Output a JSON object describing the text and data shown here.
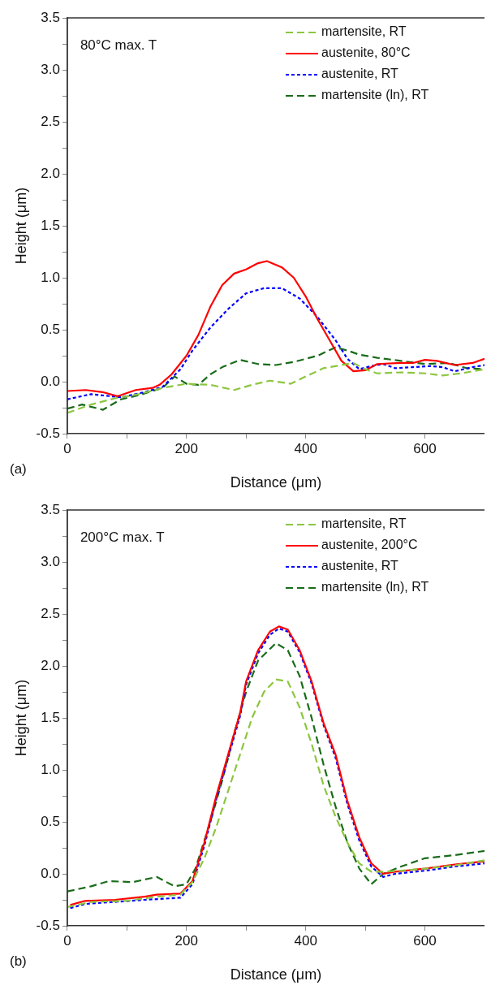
{
  "chart_data": [
    {
      "type": "line",
      "xlabel": "Distance (μm)",
      "ylabel": "Height (μm)",
      "annotations": [
        "80°C max. T",
        "(a)"
      ],
      "legend": "top right",
      "grid": false,
      "marker": "none",
      "xlim": [
        0,
        700
      ],
      "xticks": [
        0,
        {
          "value": 100,
          "label": null
        },
        200,
        {
          "value": 300,
          "label": null
        },
        400,
        {
          "value": 500,
          "label": null
        },
        600
      ],
      "ylim": [
        -0.5,
        3.5
      ],
      "yticks": [
        -0.5,
        {
          "value": -0.25,
          "label": null
        },
        {
          "value": 0,
          "label": "0.0"
        },
        {
          "value": 0.25,
          "label": null
        },
        0.5,
        {
          "value": 0.75,
          "label": null
        },
        {
          "value": 1,
          "label": "1.0"
        },
        {
          "value": 1.25,
          "label": null
        },
        1.5,
        {
          "value": 1.75,
          "label": null
        },
        {
          "value": 2,
          "label": "2.0"
        },
        {
          "value": 2.25,
          "label": null
        },
        2.5,
        {
          "value": 2.75,
          "label": null
        },
        {
          "value": 3,
          "label": "3.0"
        },
        {
          "value": 3.25,
          "label": null
        },
        3.5
      ],
      "series": [
        {
          "name": "martensite, RT",
          "color": "#8cc63f",
          "line_style": "dashed",
          "x": [
            0,
            40,
            80,
            120,
            160,
            200,
            240,
            280,
            310,
            340,
            375,
            400,
            430,
            460,
            480,
            500,
            520,
            560,
            600,
            630,
            660,
            700
          ],
          "values": [
            -0.3,
            -0.22,
            -0.16,
            -0.12,
            -0.06,
            -0.02,
            -0.03,
            -0.08,
            -0.03,
            0.01,
            -0.02,
            0.05,
            0.13,
            0.16,
            0.18,
            0.12,
            0.08,
            0.09,
            0.08,
            0.06,
            0.08,
            0.12
          ]
        },
        {
          "name": "austenite, 80°C",
          "color": "#ff0000",
          "line_style": "solid",
          "x": [
            0,
            31,
            59,
            84,
            115,
            143,
            155,
            175,
            200,
            220,
            240,
            260,
            280,
            300,
            320,
            335,
            360,
            380,
            400,
            420,
            440,
            460,
            480,
            500,
            520,
            560,
            580,
            600,
            620,
            650,
            680,
            700
          ],
          "values": [
            -0.09,
            -0.08,
            -0.1,
            -0.14,
            -0.08,
            -0.06,
            -0.03,
            0.07,
            0.25,
            0.45,
            0.72,
            0.93,
            1.04,
            1.08,
            1.14,
            1.16,
            1.1,
            1.0,
            0.82,
            0.6,
            0.4,
            0.2,
            0.1,
            0.11,
            0.17,
            0.18,
            0.18,
            0.21,
            0.2,
            0.16,
            0.18,
            0.22
          ]
        },
        {
          "name": "austenite, RT",
          "color": "#0000ff",
          "line_style": "dotted",
          "x": [
            0,
            40,
            90,
            130,
            160,
            190,
            210,
            240,
            270,
            300,
            330,
            360,
            390,
            420,
            450,
            470,
            490,
            510,
            530,
            550,
            580,
            610,
            630,
            650,
            680,
            700
          ],
          "values": [
            -0.17,
            -0.12,
            -0.15,
            -0.1,
            -0.05,
            0.12,
            0.3,
            0.52,
            0.7,
            0.85,
            0.9,
            0.9,
            0.8,
            0.62,
            0.4,
            0.22,
            0.12,
            0.15,
            0.17,
            0.13,
            0.14,
            0.15,
            0.14,
            0.1,
            0.14,
            0.16
          ]
        },
        {
          "name": "martensite (ln), RT",
          "color": "#1a6b1a",
          "line_style": "dashed",
          "x": [
            0,
            25,
            60,
            90,
            120,
            160,
            180,
            200,
            220,
            240,
            260,
            290,
            320,
            350,
            380,
            420,
            450,
            470,
            490,
            520,
            560,
            600,
            640,
            670,
            700
          ],
          "values": [
            -0.26,
            -0.22,
            -0.27,
            -0.17,
            -0.13,
            -0.06,
            0.05,
            -0.02,
            -0.03,
            0.07,
            0.14,
            0.21,
            0.17,
            0.16,
            0.19,
            0.25,
            0.33,
            0.3,
            0.26,
            0.23,
            0.2,
            0.17,
            0.18,
            0.13,
            0.12
          ]
        }
      ]
    },
    {
      "type": "line",
      "xlabel": "Distance (μm)",
      "ylabel": "Height (μm)",
      "annotations": [
        "200°C max. T",
        "(b)"
      ],
      "legend": "top right",
      "grid": false,
      "marker": "none",
      "xlim": [
        0,
        700
      ],
      "xticks": [
        0,
        {
          "value": 100,
          "label": null
        },
        200,
        {
          "value": 300,
          "label": null
        },
        400,
        {
          "value": 500,
          "label": null
        },
        600
      ],
      "ylim": [
        -0.5,
        3.5
      ],
      "yticks": [
        -0.5,
        {
          "value": -0.25,
          "label": null
        },
        {
          "value": 0,
          "label": "0.0"
        },
        {
          "value": 0.25,
          "label": null
        },
        0.5,
        {
          "value": 0.75,
          "label": null
        },
        {
          "value": 1,
          "label": "1.0"
        },
        {
          "value": 1.25,
          "label": null
        },
        1.5,
        {
          "value": 1.75,
          "label": null
        },
        {
          "value": 2,
          "label": "2.0"
        },
        {
          "value": 2.25,
          "label": null
        },
        2.5,
        {
          "value": 2.75,
          "label": null
        },
        {
          "value": 3,
          "label": "3.0"
        },
        {
          "value": 3.25,
          "label": null
        },
        3.5
      ],
      "series": [
        {
          "name": "martensite, RT",
          "color": "#8cc63f",
          "line_style": "dashed",
          "x": [
            0,
            40,
            100,
            150,
            190,
            210,
            230,
            250,
            270,
            290,
            310,
            330,
            350,
            370,
            390,
            410,
            430,
            450,
            470,
            490,
            510,
            530,
            560,
            600,
            650,
            700
          ],
          "values": [
            -0.32,
            -0.27,
            -0.26,
            -0.22,
            -0.2,
            -0.08,
            0.15,
            0.45,
            0.8,
            1.15,
            1.5,
            1.75,
            1.87,
            1.85,
            1.6,
            1.25,
            0.85,
            0.55,
            0.3,
            0.1,
            0.02,
            0.02,
            0.03,
            0.05,
            0.08,
            0.13
          ]
        },
        {
          "name": "austenite, 200°C",
          "color": "#ff0000",
          "line_style": "solid",
          "x": [
            5,
            30,
            80,
            130,
            150,
            190,
            210,
            230,
            250,
            270,
            290,
            300,
            320,
            340,
            355,
            370,
            390,
            410,
            430,
            450,
            470,
            490,
            510,
            530,
            550,
            600,
            650,
            700
          ],
          "values": [
            -0.3,
            -0.26,
            -0.25,
            -0.22,
            -0.2,
            -0.19,
            -0.07,
            0.3,
            0.75,
            1.15,
            1.55,
            1.85,
            2.15,
            2.33,
            2.38,
            2.35,
            2.15,
            1.85,
            1.45,
            1.15,
            0.7,
            0.35,
            0.1,
            0.0,
            0.02,
            0.05,
            0.09,
            0.12
          ]
        },
        {
          "name": "austenite, RT",
          "color": "#0000ff",
          "line_style": "dotted",
          "x": [
            5,
            30,
            80,
            130,
            190,
            210,
            230,
            250,
            270,
            290,
            300,
            320,
            340,
            355,
            370,
            390,
            410,
            430,
            450,
            470,
            490,
            510,
            530,
            550,
            600,
            650,
            700
          ],
          "values": [
            -0.33,
            -0.29,
            -0.27,
            -0.25,
            -0.23,
            -0.1,
            0.27,
            0.72,
            1.12,
            1.52,
            1.82,
            2.12,
            2.3,
            2.36,
            2.33,
            2.13,
            1.83,
            1.43,
            1.12,
            0.67,
            0.32,
            0.07,
            -0.03,
            0.0,
            0.03,
            0.07,
            0.1
          ]
        },
        {
          "name": "martensite (ln), RT",
          "color": "#1a6b1a",
          "line_style": "dashed",
          "x": [
            0,
            40,
            70,
            110,
            150,
            180,
            200,
            215,
            240,
            260,
            280,
            300,
            320,
            350,
            370,
            390,
            410,
            430,
            450,
            470,
            490,
            510,
            530,
            560,
            600,
            650,
            700
          ],
          "values": [
            -0.17,
            -0.12,
            -0.07,
            -0.08,
            -0.03,
            -0.12,
            -0.1,
            0.05,
            0.5,
            0.9,
            1.35,
            1.75,
            2.05,
            2.22,
            2.15,
            1.9,
            1.5,
            1.05,
            0.65,
            0.3,
            0.05,
            -0.1,
            0.0,
            0.07,
            0.15,
            0.18,
            0.22
          ]
        }
      ]
    }
  ]
}
